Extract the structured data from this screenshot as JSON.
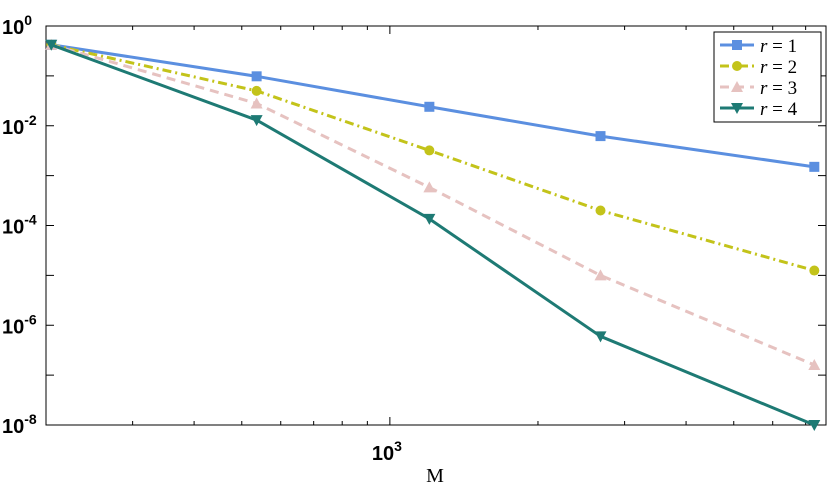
{
  "chart_data": {
    "type": "line",
    "x_scale": "log",
    "y_scale": "log",
    "xlabel": "M",
    "ylabel": "",
    "title": "",
    "xlim": [
      200,
      7700
    ],
    "ylim": [
      1e-08,
      1
    ],
    "x_ticks": [
      {
        "base": "10",
        "exp": "3",
        "value": 1000
      }
    ],
    "y_ticks": [
      {
        "base": "10",
        "exp": "0",
        "value": 1
      },
      {
        "base": "10",
        "exp": "-2",
        "value": 0.01
      },
      {
        "base": "10",
        "exp": "-4",
        "value": 0.0001
      },
      {
        "base": "10",
        "exp": "-6",
        "value": 1e-06
      },
      {
        "base": "10",
        "exp": "-8",
        "value": 1e-08
      }
    ],
    "grid": false,
    "legend_position": "top-right",
    "series": [
      {
        "name_var": "r",
        "name_eq": " = 1",
        "color": "#5b8fe0",
        "dash": "solid",
        "marker": "square",
        "x": [
          205,
          536,
          1203,
          2680,
          7290
        ],
        "y": [
          0.42,
          0.098,
          0.024,
          0.0062,
          0.0015
        ]
      },
      {
        "name_var": "r",
        "name_eq": " = 2",
        "color": "#c3c31a",
        "dash": "dashdot",
        "marker": "circle",
        "x": [
          205,
          536,
          1203,
          2680,
          7290
        ],
        "y": [
          0.42,
          0.05,
          0.0032,
          0.0002,
          1.25e-05
        ]
      },
      {
        "name_var": "r",
        "name_eq": " = 3",
        "color": "#e6c2c0",
        "dash": "dashed",
        "marker": "triangle-up",
        "x": [
          205,
          536,
          1203,
          2680,
          7290
        ],
        "y": [
          0.42,
          0.028,
          0.00058,
          1e-05,
          1.6e-07
        ]
      },
      {
        "name_var": "r",
        "name_eq": " = 4",
        "color": "#1e7a74",
        "dash": "solid",
        "marker": "triangle-down",
        "x": [
          205,
          536,
          1203,
          2680,
          7290
        ],
        "y": [
          0.42,
          0.013,
          0.000136,
          6e-07,
          1e-08
        ]
      }
    ]
  }
}
